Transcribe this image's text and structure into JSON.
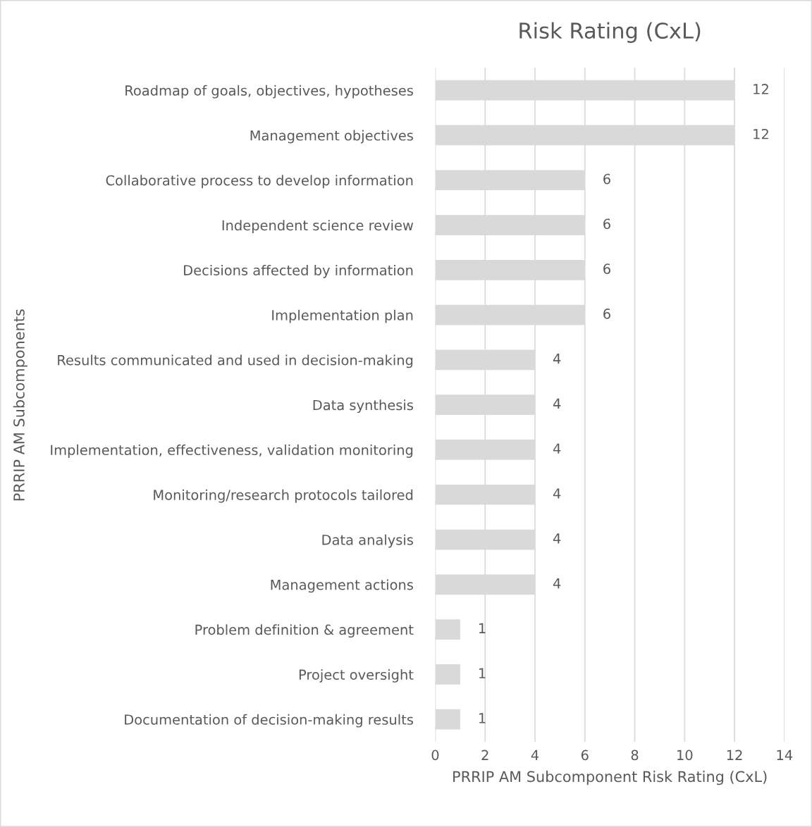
{
  "chart_data": {
    "type": "bar",
    "orientation": "horizontal",
    "title": "Risk Rating (CxL)",
    "xlabel": "PRRIP AM Subcomponent Risk Rating (CxL)",
    "ylabel": "PRRIP AM Subcomponents",
    "categories": [
      "Roadmap of goals, objectives, hypotheses",
      "Management objectives",
      "Collaborative process to develop information",
      "Independent science review",
      "Decisions affected by information",
      "Implementation plan",
      "Results communicated and used in decision-making",
      "Data synthesis",
      "Implementation, effectiveness, validation monitoring",
      "Monitoring/research protocols tailored",
      "Data analysis",
      "Management actions",
      "Problem definition & agreement",
      "Project oversight",
      "Documentation of decision-making results"
    ],
    "values": [
      12,
      12,
      6,
      6,
      6,
      6,
      4,
      4,
      4,
      4,
      4,
      4,
      1,
      1,
      1
    ],
    "color": "#d9d9d9",
    "xlim": [
      0,
      14
    ],
    "xticks": [
      0,
      2,
      4,
      6,
      8,
      10,
      12,
      14
    ],
    "grid": "x",
    "data_labels": true,
    "legend": false
  }
}
